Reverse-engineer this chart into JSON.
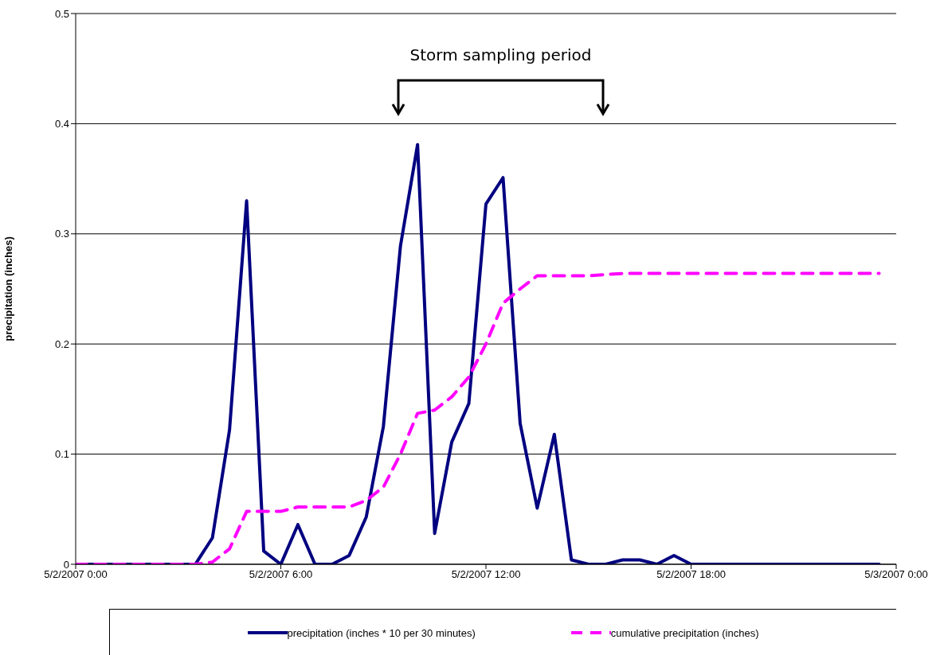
{
  "chart_data": {
    "type": "line",
    "ylabel": "precipitation (inches)",
    "x": [
      "2007-05-02T00:00",
      "2007-05-02T00:30",
      "2007-05-02T01:00",
      "2007-05-02T01:30",
      "2007-05-02T02:00",
      "2007-05-02T02:30",
      "2007-05-02T03:00",
      "2007-05-02T03:30",
      "2007-05-02T04:00",
      "2007-05-02T04:30",
      "2007-05-02T05:00",
      "2007-05-02T05:30",
      "2007-05-02T06:00",
      "2007-05-02T06:30",
      "2007-05-02T07:00",
      "2007-05-02T07:30",
      "2007-05-02T08:00",
      "2007-05-02T08:30",
      "2007-05-02T09:00",
      "2007-05-02T09:30",
      "2007-05-02T10:00",
      "2007-05-02T10:30",
      "2007-05-02T11:00",
      "2007-05-02T11:30",
      "2007-05-02T12:00",
      "2007-05-02T12:30",
      "2007-05-02T13:00",
      "2007-05-02T13:30",
      "2007-05-02T14:00",
      "2007-05-02T14:30",
      "2007-05-02T15:00",
      "2007-05-02T15:30",
      "2007-05-02T16:00",
      "2007-05-02T16:30",
      "2007-05-02T17:00",
      "2007-05-02T17:30",
      "2007-05-02T18:00",
      "2007-05-02T18:30",
      "2007-05-02T19:00",
      "2007-05-02T19:30",
      "2007-05-02T20:00",
      "2007-05-02T20:30",
      "2007-05-02T21:00",
      "2007-05-02T21:30",
      "2007-05-02T22:00",
      "2007-05-02T22:30",
      "2007-05-02T23:00",
      "2007-05-02T23:30"
    ],
    "series": [
      {
        "name": "precipitation (inches * 10 per 30 minutes)",
        "color": "#000080",
        "line_style": "solid",
        "values": [
          0,
          0,
          0,
          0,
          0,
          0,
          0,
          0,
          0.024,
          0.122,
          0.33,
          0.012,
          0,
          0.036,
          0,
          0,
          0.008,
          0.043,
          0.125,
          0.289,
          0.381,
          0.028,
          0.111,
          0.146,
          0.327,
          0.351,
          0.128,
          0.051,
          0.118,
          0.004,
          0,
          0,
          0.004,
          0.004,
          0,
          0.008,
          0,
          0,
          0,
          0,
          0,
          0,
          0,
          0,
          0,
          0,
          0,
          0
        ]
      },
      {
        "name": "cumulative precipitation (inches)",
        "color": "#ff00ff",
        "line_style": "dashed",
        "values": [
          0,
          0,
          0,
          0,
          0,
          0,
          0,
          0,
          0.002,
          0.014,
          0.048,
          0.048,
          0.048,
          0.052,
          0.052,
          0.052,
          0.052,
          0.058,
          0.07,
          0.1,
          0.137,
          0.14,
          0.152,
          0.17,
          0.2,
          0.237,
          0.25,
          0.262,
          0.262,
          0.262,
          0.262,
          0.263,
          0.264,
          0.264,
          0.264,
          0.264,
          0.264,
          0.264,
          0.264,
          0.264,
          0.264,
          0.264,
          0.264,
          0.264,
          0.264,
          0.264,
          0.264,
          0.264
        ]
      }
    ],
    "xlim": [
      "2007-05-02T00:00",
      "2007-05-03T00:00"
    ],
    "xticks": [
      {
        "value": "2007-05-02T00:00",
        "label": "5/2/2007  0:00"
      },
      {
        "value": "2007-05-02T06:00",
        "label": "5/2/2007  6:00"
      },
      {
        "value": "2007-05-02T12:00",
        "label": "5/2/2007  12:00"
      },
      {
        "value": "2007-05-02T18:00",
        "label": "5/2/2007  18:00"
      },
      {
        "value": "2007-05-03T00:00",
        "label": "5/3/2007  0:00"
      }
    ],
    "ylim": [
      0,
      0.5
    ],
    "yticks": [
      0,
      0.1,
      0.2,
      0.3,
      0.4,
      0.5
    ],
    "annotations": [
      "Storm sampling period"
    ],
    "grid": "y",
    "legend": "bottom",
    "marker": "none"
  }
}
